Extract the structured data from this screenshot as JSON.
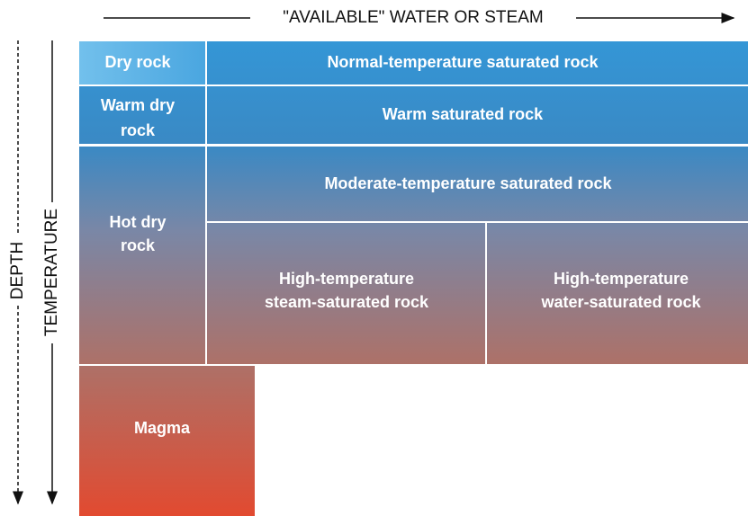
{
  "top_axis": {
    "label": "\"AVAILABLE\" WATER OR STEAM"
  },
  "left_axes": {
    "depth": "DEPTH",
    "temperature": "TEMPERATURE"
  },
  "cells": [
    {
      "lines": [
        "Dry rock"
      ]
    },
    {
      "lines": [
        "Normal-temperature saturated rock"
      ]
    },
    {
      "lines": [
        "Warm dry",
        "rock"
      ]
    },
    {
      "lines": [
        "Warm saturated rock"
      ]
    },
    {
      "lines": [
        "Hot dry",
        "rock"
      ]
    },
    {
      "lines": [
        "Moderate-temperature saturated rock"
      ]
    },
    {
      "lines": [
        "High-temperature",
        "steam-saturated rock"
      ]
    },
    {
      "lines": [
        "High-temperature",
        "water-saturated rock"
      ]
    },
    {
      "lines": [
        "Magma"
      ]
    }
  ]
}
